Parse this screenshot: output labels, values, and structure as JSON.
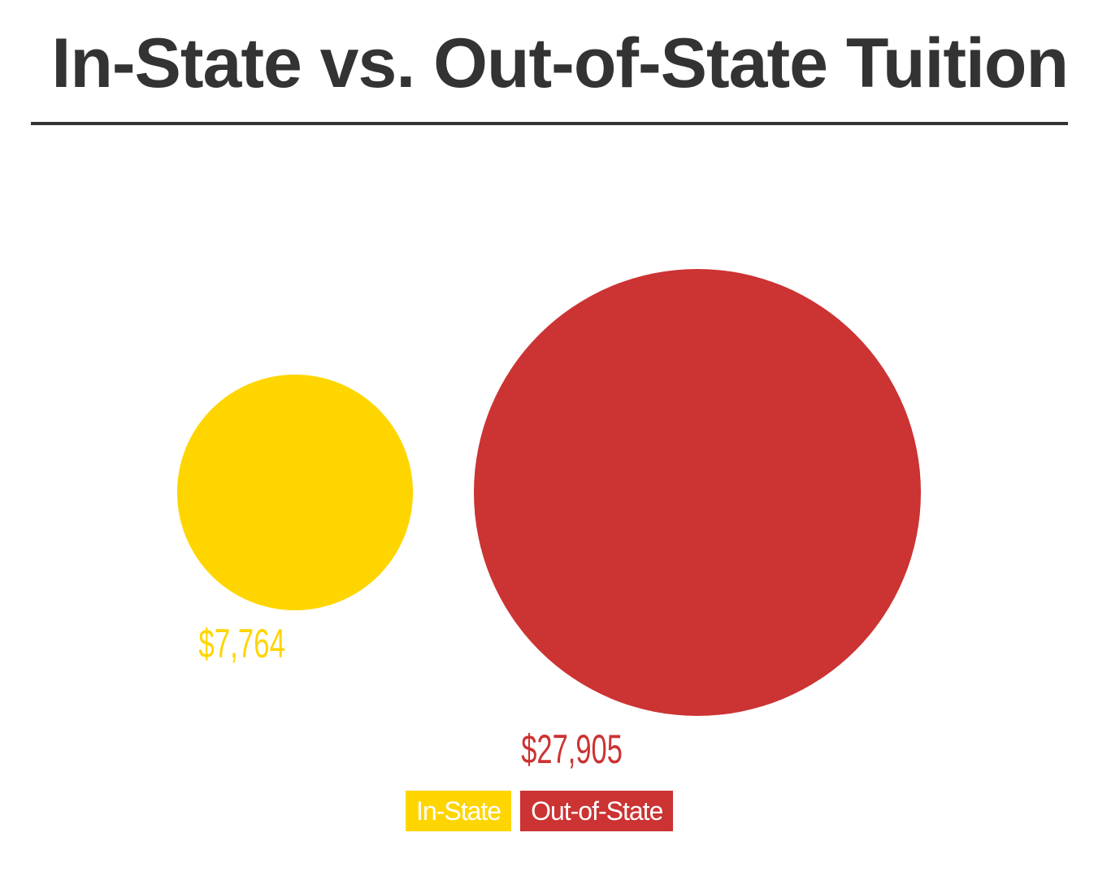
{
  "chart_data": {
    "type": "bubble",
    "title": "In-State vs. Out-of-State Tuition",
    "categories": [
      "In-State",
      "Out-of-State"
    ],
    "values": [
      7764,
      27905
    ],
    "value_labels": [
      "$7,764",
      "$27,905"
    ],
    "colors": [
      "#FFD500",
      "#CC3333"
    ],
    "legend": {
      "placement": "bottom-center",
      "entries": [
        "In-State",
        "Out-of-State"
      ]
    },
    "grid": false
  }
}
